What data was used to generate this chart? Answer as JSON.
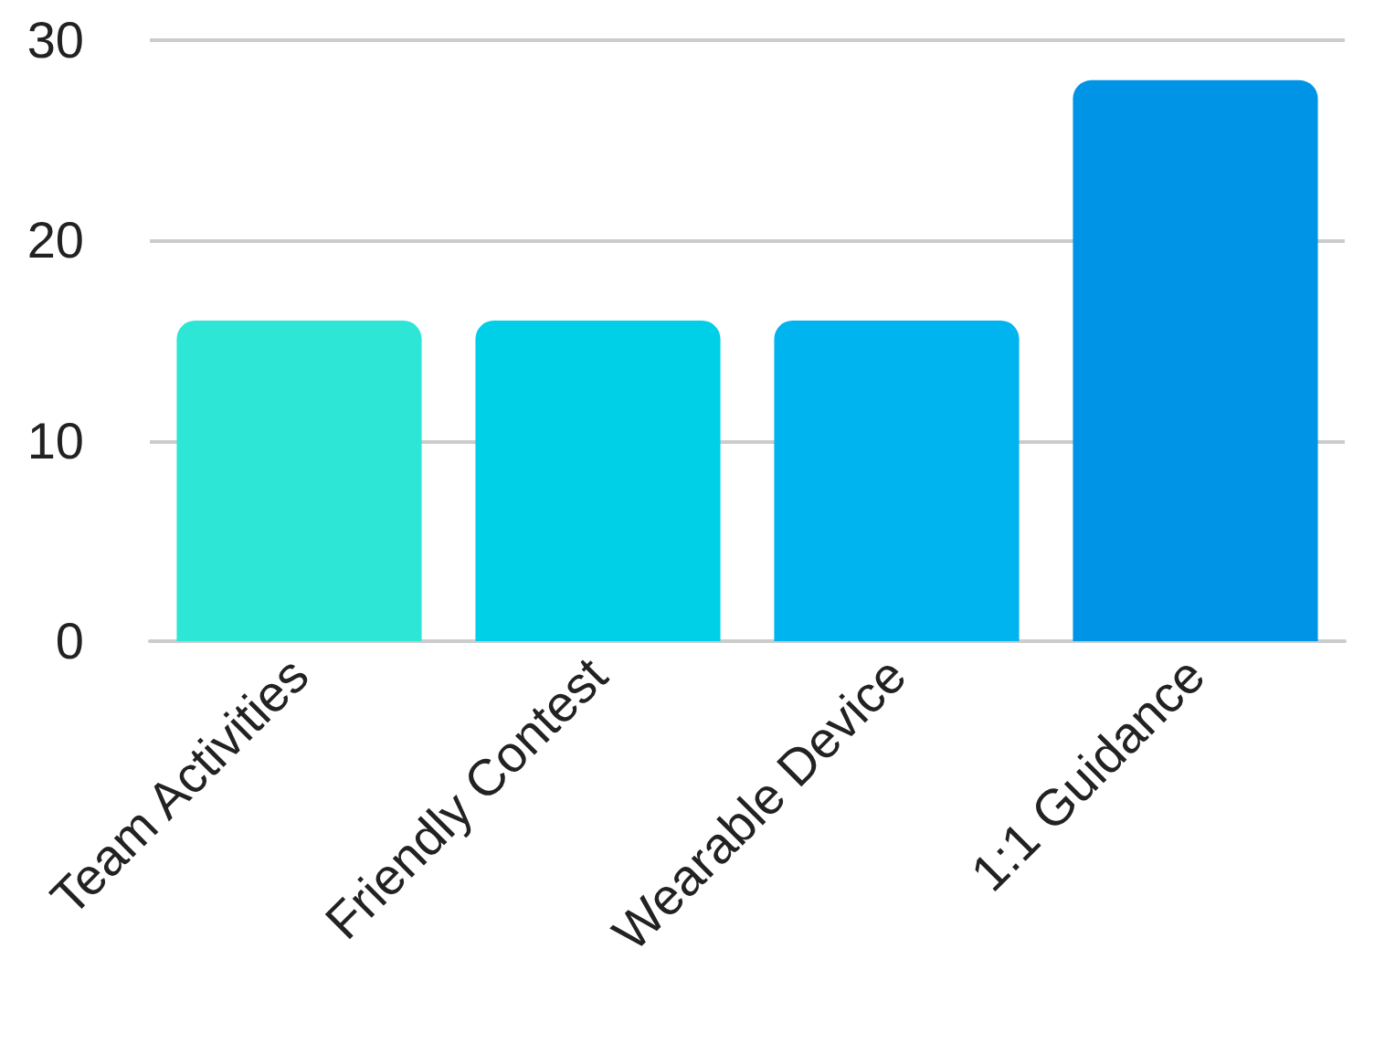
{
  "chart_data": {
    "type": "bar",
    "categories": [
      "Team Activities",
      "Friendly Contest",
      "Wearable Device",
      "1:1 Guidance"
    ],
    "values": [
      16,
      16,
      16,
      28
    ],
    "colors": [
      "#2ee6d6",
      "#00cfe8",
      "#00b4f0",
      "#0094e6"
    ],
    "ylim": [
      0,
      30
    ],
    "yticks": [
      0,
      10,
      20,
      30
    ],
    "grid": "y"
  }
}
